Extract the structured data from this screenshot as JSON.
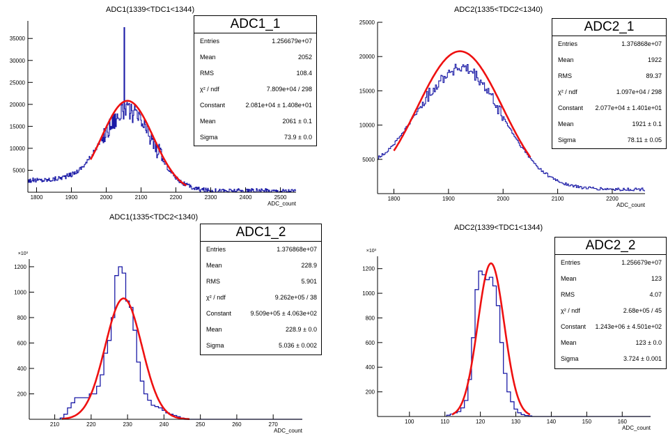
{
  "chart_data": [
    {
      "type": "histogram",
      "title": "ADC1(1339<TDC1<1344)",
      "xlabel": "ADC_count",
      "ylabel": "",
      "xlim": [
        1775,
        2545
      ],
      "ylim": [
        0,
        39000
      ],
      "y_multiplier_label": "",
      "xticks": [
        1800,
        1900,
        2000,
        2100,
        2200,
        2300,
        2400,
        2500
      ],
      "xtick_labels": [
        "1800",
        "1900",
        "2000",
        "2100",
        "2200",
        "2300",
        "2400",
        "2500"
      ],
      "yticks": [
        5000,
        10000,
        15000,
        20000,
        25000,
        30000,
        35000
      ],
      "ytick_labels": [
        "5000",
        "10000",
        "15000",
        "20000",
        "25000",
        "30000",
        "35000"
      ],
      "hist": {
        "baseline": 2700,
        "amplitude": 18100,
        "mean": 2061,
        "sigma": 73.9,
        "noise": 2200,
        "bin": 2,
        "noise_range": [
          1990,
          2160
        ],
        "spike": {
          "x": 2052,
          "y": 37500
        },
        "tail": 300
      },
      "fit": {
        "constant": 20810,
        "mean": 2061,
        "sigma": 73.9,
        "xmin": 1955,
        "xmax": 2230
      },
      "stats": {
        "name": "ADC1_1",
        "rows": [
          {
            "label": "Entries",
            "value": "1.256679e+07"
          },
          {
            "label": "Mean",
            "value": "2052"
          },
          {
            "label": "RMS",
            "value": "108.4"
          },
          {
            "label": "χ² / ndf",
            "value": "7.809e+04 / 298"
          },
          {
            "label": "Constant",
            "value": "2.081e+04 ± 1.408e+01"
          },
          {
            "label": "Mean",
            "value": "2061 ± 0.1"
          },
          {
            "label": "Sigma",
            "value": "73.9 ± 0.0"
          }
        ]
      }
    },
    {
      "type": "histogram",
      "title": "ADC2(1335<TDC2<1340)",
      "xlabel": "ADC_count",
      "ylabel": "",
      "xlim": [
        1770,
        2260
      ],
      "ylim": [
        0,
        25000
      ],
      "y_multiplier_label": "",
      "xticks": [
        1800,
        1900,
        2000,
        2100,
        2200
      ],
      "xtick_labels": [
        "1800",
        "1900",
        "2000",
        "2100",
        "2200"
      ],
      "yticks": [
        5000,
        10000,
        15000,
        20000,
        25000
      ],
      "ytick_labels": [
        "5000",
        "10000",
        "15000",
        "20000",
        "25000"
      ],
      "hist": {
        "baseline": 3100,
        "amplitude": 17700,
        "mean": 1921,
        "sigma": 78.1,
        "noise": 900,
        "bin": 2,
        "noise_range": [
          1850,
          2000
        ],
        "tail": 600
      },
      "fit": {
        "constant": 20770,
        "mean": 1921,
        "sigma": 78.11,
        "xmin": 1800,
        "xmax": 2050
      },
      "stats": {
        "name": "ADC2_1",
        "rows": [
          {
            "label": "Entries",
            "value": "1.376868e+07"
          },
          {
            "label": "Mean",
            "value": "1922"
          },
          {
            "label": "RMS",
            "value": "89.37"
          },
          {
            "label": "χ² / ndf",
            "value": "1.097e+04 / 298"
          },
          {
            "label": "Constant",
            "value": "2.077e+04 ± 1.401e+01"
          },
          {
            "label": "Mean",
            "value": "1921 ± 0.1"
          },
          {
            "label": "Sigma",
            "value": "78.11 ± 0.05"
          }
        ]
      }
    },
    {
      "type": "histogram",
      "title": "ADC1(1335<TDC2<1340)",
      "xlabel": "ADC_count",
      "ylabel": "",
      "xlim": [
        203,
        278
      ],
      "ylim": [
        0,
        1260000
      ],
      "y_multiplier_label": "×10³",
      "xticks": [
        210,
        220,
        230,
        240,
        250,
        260,
        270
      ],
      "xtick_labels": [
        "210",
        "220",
        "230",
        "240",
        "250",
        "260",
        "270"
      ],
      "yticks": [
        200000,
        400000,
        600000,
        800000,
        1000000,
        1200000
      ],
      "ytick_labels": [
        "200",
        "400",
        "600",
        "800",
        "1000",
        "1200"
      ],
      "bins": [
        {
          "x": 212,
          "y": 10000
        },
        {
          "x": 213,
          "y": 40000
        },
        {
          "x": 214,
          "y": 90000
        },
        {
          "x": 215,
          "y": 130000
        },
        {
          "x": 216,
          "y": 170000
        },
        {
          "x": 217,
          "y": 170000
        },
        {
          "x": 218,
          "y": 170000
        },
        {
          "x": 219,
          "y": 170000
        },
        {
          "x": 220,
          "y": 200000
        },
        {
          "x": 221,
          "y": 200000
        },
        {
          "x": 222,
          "y": 260000
        },
        {
          "x": 223,
          "y": 350000
        },
        {
          "x": 224,
          "y": 520000
        },
        {
          "x": 225,
          "y": 620000
        },
        {
          "x": 226,
          "y": 800000
        },
        {
          "x": 227,
          "y": 1130000
        },
        {
          "x": 228,
          "y": 1200000
        },
        {
          "x": 229,
          "y": 1150000
        },
        {
          "x": 230,
          "y": 930000
        },
        {
          "x": 231,
          "y": 880000
        },
        {
          "x": 232,
          "y": 700000
        },
        {
          "x": 233,
          "y": 450000
        },
        {
          "x": 234,
          "y": 300000
        },
        {
          "x": 235,
          "y": 200000
        },
        {
          "x": 236,
          "y": 150000
        },
        {
          "x": 237,
          "y": 110000
        },
        {
          "x": 238,
          "y": 100000
        },
        {
          "x": 239,
          "y": 90000
        },
        {
          "x": 240,
          "y": 70000
        },
        {
          "x": 241,
          "y": 50000
        },
        {
          "x": 242,
          "y": 40000
        },
        {
          "x": 243,
          "y": 30000
        },
        {
          "x": 244,
          "y": 20000
        },
        {
          "x": 245,
          "y": 10000
        }
      ],
      "bin_width": 1,
      "fit": {
        "constant": 950900,
        "mean": 228.9,
        "sigma": 5.036,
        "xmin": 212,
        "xmax": 247
      },
      "stats": {
        "name": "ADC1_2",
        "rows": [
          {
            "label": "Entries",
            "value": "1.376868e+07"
          },
          {
            "label": "Mean",
            "value": "228.9"
          },
          {
            "label": "RMS",
            "value": "5.901"
          },
          {
            "label": "χ² / ndf",
            "value": "9.262e+05 / 38"
          },
          {
            "label": "Constant",
            "value": "9.509e+05 ± 4.063e+02"
          },
          {
            "label": "Mean",
            "value": "228.9 ± 0.0"
          },
          {
            "label": "Sigma",
            "value": "5.036 ± 0.002"
          }
        ]
      }
    },
    {
      "type": "histogram",
      "title": "ADC2(1339<TDC1<1344)",
      "xlabel": "ADC_count",
      "ylabel": "",
      "xlim": [
        91,
        168
      ],
      "ylim": [
        0,
        1300000
      ],
      "y_multiplier_label": "×10³",
      "xticks": [
        100,
        110,
        120,
        130,
        140,
        150,
        160
      ],
      "xtick_labels": [
        "100",
        "110",
        "120",
        "130",
        "140",
        "150",
        "160"
      ],
      "yticks": [
        200000,
        400000,
        600000,
        800000,
        1000000,
        1200000
      ],
      "ytick_labels": [
        "200",
        "400",
        "600",
        "800",
        "1000",
        "1200"
      ],
      "bins": [
        {
          "x": 111,
          "y": 10000
        },
        {
          "x": 112,
          "y": 20000
        },
        {
          "x": 113,
          "y": 30000
        },
        {
          "x": 114,
          "y": 40000
        },
        {
          "x": 115,
          "y": 70000
        },
        {
          "x": 116,
          "y": 130000
        },
        {
          "x": 117,
          "y": 300000
        },
        {
          "x": 118,
          "y": 640000
        },
        {
          "x": 119,
          "y": 1030000
        },
        {
          "x": 120,
          "y": 1180000
        },
        {
          "x": 121,
          "y": 1150000
        },
        {
          "x": 122,
          "y": 1110000
        },
        {
          "x": 123,
          "y": 1130000
        },
        {
          "x": 124,
          "y": 1060000
        },
        {
          "x": 125,
          "y": 900000
        },
        {
          "x": 126,
          "y": 600000
        },
        {
          "x": 127,
          "y": 350000
        },
        {
          "x": 128,
          "y": 200000
        },
        {
          "x": 129,
          "y": 120000
        },
        {
          "x": 130,
          "y": 60000
        },
        {
          "x": 131,
          "y": 30000
        },
        {
          "x": 132,
          "y": 15000
        },
        {
          "x": 133,
          "y": 8000
        },
        {
          "x": 134,
          "y": 5000
        }
      ],
      "bin_width": 1,
      "fit": {
        "constant": 1243000,
        "mean": 123,
        "sigma": 3.724,
        "xmin": 112,
        "xmax": 134
      },
      "stats": {
        "name": "ADC2_2",
        "rows": [
          {
            "label": "Entries",
            "value": "1.256679e+07"
          },
          {
            "label": "Mean",
            "value": "123"
          },
          {
            "label": "RMS",
            "value": "4.07"
          },
          {
            "label": "χ² / ndf",
            "value": "2.68e+05 / 45"
          },
          {
            "label": "Constant",
            "value": "1.243e+06 ± 4.501e+02"
          },
          {
            "label": "Mean",
            "value": "123 ± 0.0"
          },
          {
            "label": "Sigma",
            "value": "3.724 ± 0.001"
          }
        ]
      }
    }
  ]
}
